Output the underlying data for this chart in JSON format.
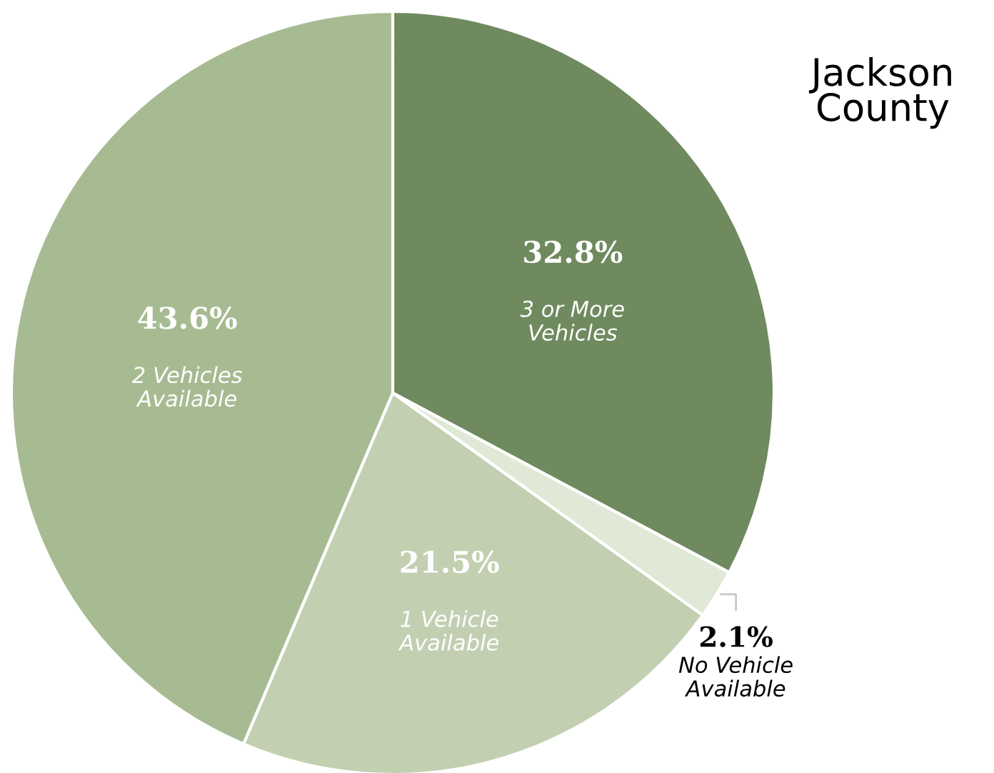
{
  "chart_data": {
    "type": "pie",
    "title": "Jackson\nCounty",
    "categories": [
      "3 or More\nVehicles",
      "No Vehicle\nAvailable",
      "1 Vehicle\nAvailable",
      "2 Vehicles\nAvailable"
    ],
    "values": [
      32.8,
      2.1,
      21.5,
      43.6
    ],
    "value_labels": [
      "32.8%",
      "2.1%",
      "21.5%",
      "43.6%"
    ],
    "colors": [
      "#6f8a5f",
      "#e0e8d6",
      "#c3cfb1",
      "#a7bb92"
    ],
    "legend": false
  }
}
